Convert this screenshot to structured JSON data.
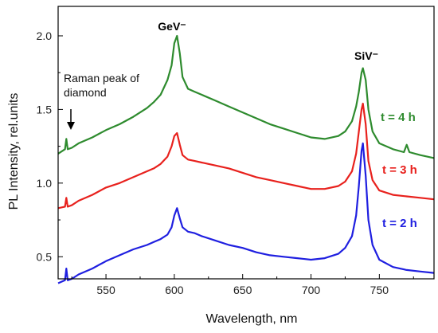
{
  "chart_data": {
    "type": "line",
    "title": "",
    "xlabel": "Wavelength, nm",
    "ylabel": "PL Intensity, rel.units",
    "xlim": [
      515,
      790
    ],
    "ylim": [
      0.35,
      2.2
    ],
    "x_ticks": [
      550,
      600,
      650,
      700,
      750
    ],
    "y_ticks": [
      0.5,
      1.0,
      1.5,
      2.0
    ],
    "x_tick_labels": [
      "550",
      "600",
      "650",
      "700",
      "750"
    ],
    "y_tick_labels": [
      "0.5",
      "1.0",
      "1.5",
      "2.0"
    ],
    "grid": false,
    "legend": "none",
    "annotations": {
      "gev_label": "GeV⁻",
      "siv_label": "SiV⁻",
      "raman_line1": "Raman peak of",
      "raman_line2": "diamond"
    },
    "series": [
      {
        "name": "t = 4 h",
        "color": "#2e8b2e",
        "x": [
          515,
          520,
          521,
          522,
          525,
          530,
          540,
          550,
          560,
          570,
          580,
          585,
          590,
          595,
          598,
          600,
          602,
          604,
          606,
          610,
          615,
          620,
          630,
          640,
          650,
          660,
          670,
          680,
          690,
          700,
          710,
          720,
          725,
          730,
          733,
          735,
          737,
          738,
          740,
          742,
          745,
          750,
          760,
          768,
          770,
          772,
          780,
          790
        ],
        "values": [
          1.2,
          1.23,
          1.3,
          1.23,
          1.24,
          1.27,
          1.31,
          1.36,
          1.4,
          1.45,
          1.51,
          1.55,
          1.6,
          1.7,
          1.8,
          1.95,
          2.0,
          1.88,
          1.72,
          1.64,
          1.62,
          1.6,
          1.56,
          1.52,
          1.48,
          1.44,
          1.4,
          1.37,
          1.34,
          1.31,
          1.3,
          1.32,
          1.35,
          1.42,
          1.52,
          1.62,
          1.75,
          1.78,
          1.7,
          1.5,
          1.35,
          1.27,
          1.23,
          1.21,
          1.26,
          1.21,
          1.19,
          1.17
        ]
      },
      {
        "name": "t = 3 h",
        "color": "#e8211d",
        "x": [
          515,
          520,
          521,
          522,
          525,
          530,
          540,
          550,
          560,
          570,
          580,
          585,
          590,
          595,
          598,
          600,
          602,
          604,
          606,
          610,
          615,
          620,
          630,
          640,
          650,
          660,
          670,
          680,
          690,
          700,
          710,
          720,
          725,
          730,
          733,
          735,
          737,
          738,
          740,
          742,
          745,
          750,
          760,
          770,
          780,
          790
        ],
        "values": [
          0.83,
          0.84,
          0.9,
          0.84,
          0.85,
          0.88,
          0.92,
          0.97,
          1.0,
          1.04,
          1.08,
          1.1,
          1.13,
          1.18,
          1.25,
          1.32,
          1.34,
          1.26,
          1.19,
          1.16,
          1.15,
          1.14,
          1.12,
          1.1,
          1.07,
          1.04,
          1.02,
          1.0,
          0.98,
          0.96,
          0.96,
          0.98,
          1.01,
          1.08,
          1.2,
          1.35,
          1.5,
          1.54,
          1.4,
          1.15,
          1.02,
          0.95,
          0.92,
          0.91,
          0.9,
          0.89
        ]
      },
      {
        "name": "t = 2 h",
        "color": "#1f1fe0",
        "x": [
          515,
          520,
          521,
          522,
          525,
          530,
          540,
          550,
          560,
          570,
          580,
          585,
          590,
          595,
          598,
          600,
          602,
          604,
          606,
          610,
          615,
          620,
          630,
          640,
          650,
          660,
          670,
          680,
          690,
          700,
          710,
          720,
          725,
          730,
          733,
          735,
          737,
          738,
          740,
          742,
          745,
          750,
          760,
          770,
          780,
          790
        ],
        "values": [
          0.32,
          0.34,
          0.42,
          0.34,
          0.35,
          0.38,
          0.42,
          0.47,
          0.51,
          0.55,
          0.58,
          0.6,
          0.62,
          0.65,
          0.7,
          0.78,
          0.83,
          0.76,
          0.7,
          0.67,
          0.66,
          0.64,
          0.61,
          0.58,
          0.56,
          0.53,
          0.51,
          0.5,
          0.49,
          0.48,
          0.49,
          0.52,
          0.56,
          0.64,
          0.78,
          0.98,
          1.22,
          1.27,
          1.05,
          0.75,
          0.58,
          0.48,
          0.43,
          0.41,
          0.4,
          0.39
        ]
      }
    ]
  }
}
